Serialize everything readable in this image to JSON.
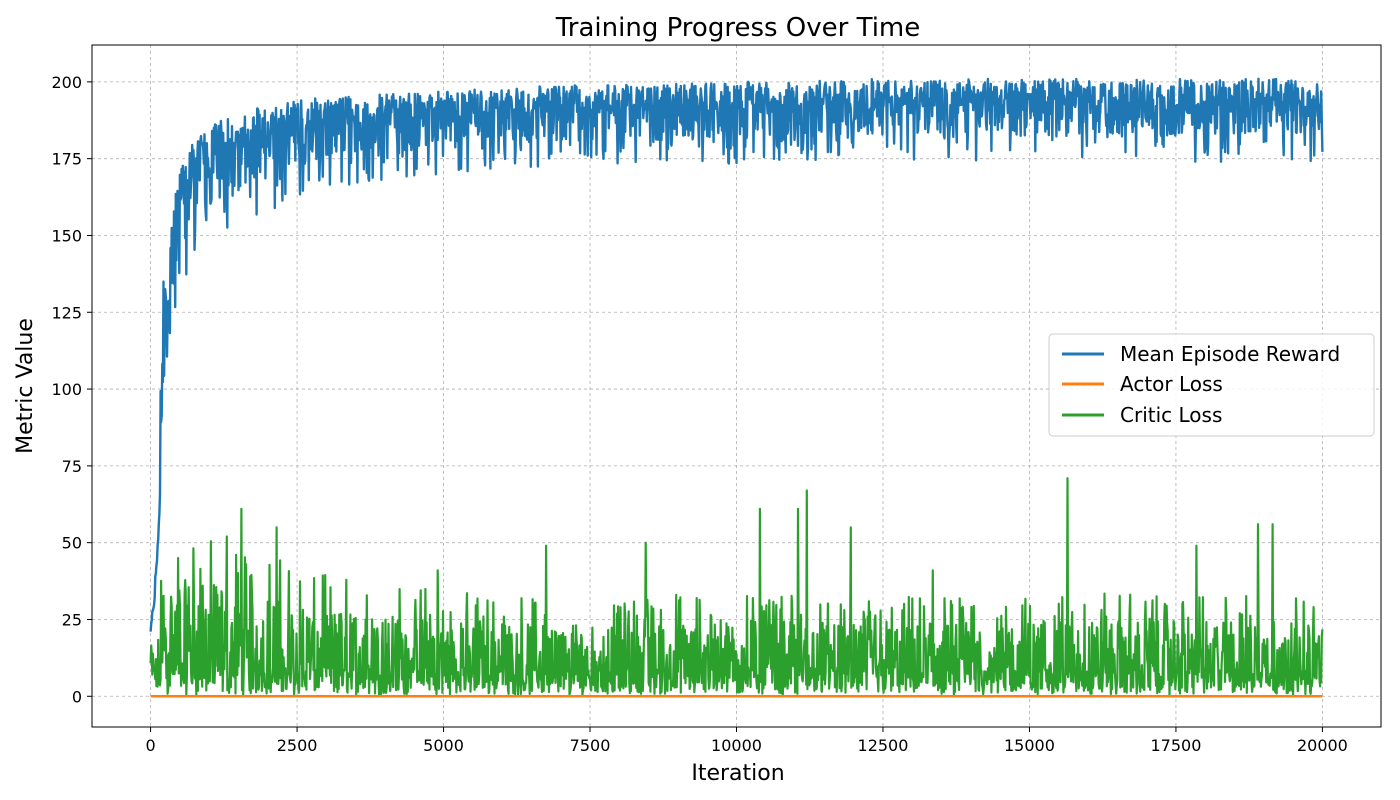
{
  "chart_data": {
    "type": "line",
    "title": "Training Progress Over Time",
    "xlabel": "Iteration",
    "ylabel": "Metric Value",
    "xlim": [
      -1000,
      21000
    ],
    "ylim": [
      -10,
      212
    ],
    "grid": true,
    "legend_position": "center-right",
    "xticks": [
      0,
      2500,
      5000,
      7500,
      10000,
      12500,
      15000,
      17500,
      20000
    ],
    "xtick_labels": [
      "0",
      "2500",
      "5000",
      "7500",
      "10000",
      "12500",
      "15000",
      "17500",
      "20000"
    ],
    "yticks": [
      0,
      25,
      50,
      75,
      100,
      125,
      150,
      175,
      200
    ],
    "ytick_labels": [
      "0",
      "25",
      "50",
      "75",
      "100",
      "125",
      "150",
      "175",
      "200"
    ],
    "series": [
      {
        "name": "Mean Episode Reward",
        "color": "#1f77b4",
        "x": [
          0,
          50,
          100,
          150,
          200,
          250,
          300,
          400,
          500,
          700,
          1000,
          1500,
          2000,
          2500,
          3000,
          4000,
          5000,
          6000,
          7000,
          8000,
          10000,
          12000,
          14000,
          16000,
          18000,
          20000
        ],
        "mean": [
          22,
          30,
          40,
          60,
          100,
          120,
          135,
          148,
          158,
          166,
          172,
          178,
          182,
          184,
          186,
          188,
          189,
          190,
          190,
          191,
          191,
          192,
          192,
          192,
          192,
          193
        ],
        "upper": [
          24,
          33,
          44,
          70,
          145,
          148,
          152,
          160,
          172,
          180,
          186,
          190,
          193,
          194,
          195,
          196,
          197,
          198,
          199,
          199,
          200,
          201,
          201,
          201,
          201,
          201
        ],
        "lower": [
          20,
          27,
          36,
          50,
          90,
          100,
          115,
          125,
          132,
          140,
          145,
          150,
          155,
          160,
          165,
          168,
          170,
          172,
          172,
          173,
          173,
          174,
          174,
          174,
          174,
          174
        ]
      },
      {
        "name": "Actor Loss",
        "color": "#ff7f0e",
        "x": [
          0,
          20000
        ],
        "values": [
          0,
          0
        ]
      },
      {
        "name": "Critic Loss",
        "color": "#2ca02c",
        "x": [
          0,
          100,
          200,
          300,
          500,
          1000,
          2000,
          3000,
          5000,
          7500,
          10000,
          12500,
          15000,
          17500,
          20000
        ],
        "mean": [
          8,
          6,
          12,
          14,
          12,
          10,
          9,
          9,
          8,
          8,
          8,
          8,
          8,
          8,
          8
        ],
        "upper": [
          20,
          15,
          45,
          42,
          47,
          45,
          40,
          35,
          30,
          28,
          30,
          28,
          30,
          30,
          28
        ],
        "spikes": [
          {
            "x": 1550,
            "y": 61
          },
          {
            "x": 2150,
            "y": 55
          },
          {
            "x": 1300,
            "y": 52
          },
          {
            "x": 6750,
            "y": 49
          },
          {
            "x": 8450,
            "y": 50
          },
          {
            "x": 10400,
            "y": 61
          },
          {
            "x": 11050,
            "y": 61
          },
          {
            "x": 11200,
            "y": 67
          },
          {
            "x": 11950,
            "y": 55
          },
          {
            "x": 15650,
            "y": 71
          },
          {
            "x": 18900,
            "y": 56
          },
          {
            "x": 19150,
            "y": 56
          },
          {
            "x": 17850,
            "y": 49
          },
          {
            "x": 13350,
            "y": 41
          },
          {
            "x": 4900,
            "y": 41
          }
        ]
      }
    ]
  }
}
